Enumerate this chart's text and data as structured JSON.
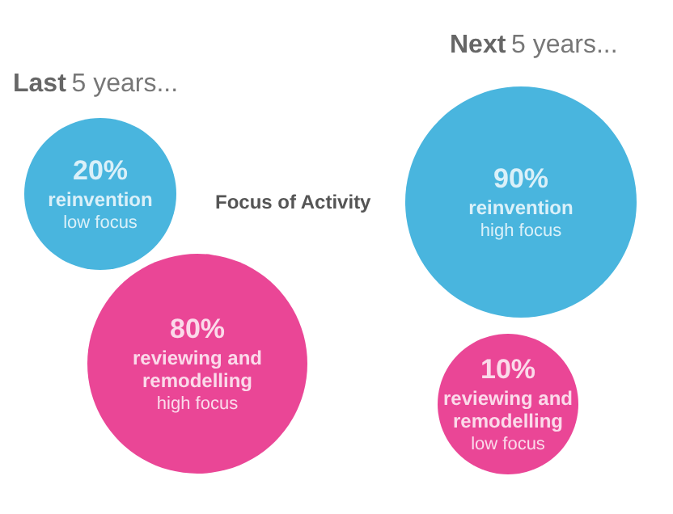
{
  "chart_data": {
    "type": "other",
    "title": "Focus of Activity",
    "categories": [
      "reinvention",
      "reviewing and remodelling"
    ],
    "series": [
      {
        "name": "Last 5 years...",
        "values": [
          20,
          80
        ],
        "value_labels": [
          "20%",
          "80%"
        ],
        "colors": [
          "#1ba3d6",
          "#e5187c"
        ]
      },
      {
        "name": "Next 5 years...",
        "values": [
          90,
          10
        ],
        "value_labels": [
          "90%",
          "10%"
        ],
        "colors": [
          "#1ba3d6",
          "#e5187c"
        ]
      }
    ],
    "annotations": [
      "low focus",
      "high focus",
      "high focus",
      "low focus"
    ]
  }
}
